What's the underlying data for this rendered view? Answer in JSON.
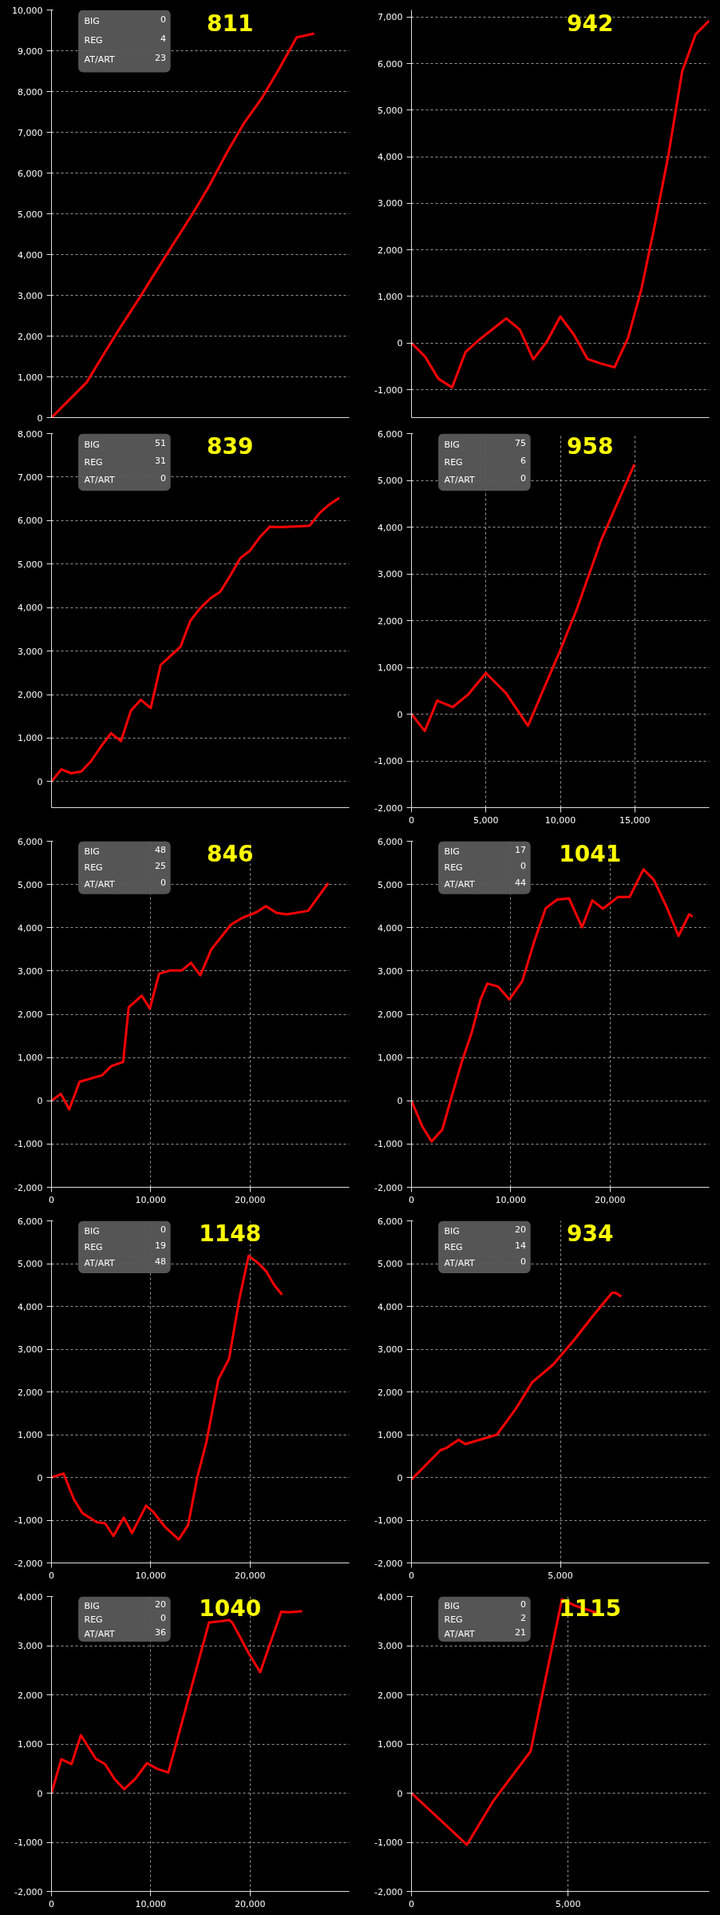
{
  "chart_data": [
    {
      "type": "line",
      "title": "811",
      "annotations": [
        "BIG",
        "0",
        "REG",
        "4",
        "AT/ART",
        "23"
      ],
      "categories": [
        null,
        null,
        null,
        null,
        null,
        null,
        null,
        null,
        null,
        null,
        null,
        null,
        null,
        null,
        null,
        null,
        null,
        null
      ],
      "series": [
        {
          "color": "#ff0000",
          "values": [
            0,
            430,
            860,
            1570,
            2260,
            2920,
            3610,
            4290,
            4960,
            5680,
            6490,
            7230,
            7830,
            8560,
            9330,
            9420,
            null,
            null
          ]
        }
      ],
      "ylim": [
        0,
        10000
      ],
      "yticks": [
        0,
        {
          "value": 1000,
          "label": "1,000"
        },
        {
          "value": 2000,
          "label": "2,000"
        },
        {
          "value": 3000,
          "label": "3,000"
        },
        {
          "value": 4000,
          "label": "4,000"
        },
        {
          "value": 5000,
          "label": "5,000"
        },
        {
          "value": 6000,
          "label": "6,000"
        },
        {
          "value": 7000,
          "label": "7,000"
        },
        {
          "value": 8000,
          "label": "8,000"
        },
        {
          "value": 9000,
          "label": "9,000"
        },
        {
          "value": 10000,
          "label": "10,000"
        }
      ],
      "tick_labels": "y",
      "grid": "y"
    },
    {
      "type": "line",
      "title": "942",
      "categories": [
        null,
        null,
        null,
        null,
        null,
        null,
        null,
        null,
        null,
        null,
        null,
        null,
        null,
        null,
        null,
        null,
        null,
        null,
        null,
        null,
        null,
        null,
        null
      ],
      "series": [
        {
          "color": "#ff0000",
          "values": [
            0,
            -290,
            -770,
            -950,
            -190,
            70,
            300,
            530,
            290,
            -350,
            30,
            570,
            180,
            -340,
            -440,
            -520,
            110,
            1170,
            2570,
            4060,
            5830,
            6630,
            6920
          ]
        }
      ],
      "ylim": [
        -1600,
        7150
      ],
      "yticks": [
        {
          "value": -1000,
          "label": "-1,000"
        },
        0,
        {
          "value": 1000,
          "label": "1,000"
        },
        {
          "value": 2000,
          "label": "2,000"
        },
        {
          "value": 3000,
          "label": "3,000"
        },
        {
          "value": 4000,
          "label": "4,000"
        },
        {
          "value": 5000,
          "label": "5,000"
        },
        {
          "value": 6000,
          "label": "6,000"
        },
        {
          "value": 7000,
          "label": "7,000"
        }
      ],
      "tick_labels": "y",
      "grid": "y"
    },
    {
      "type": "line",
      "title": "839",
      "annotations": [
        "BIG",
        "51",
        "REG",
        "31",
        "AT/ART",
        "0"
      ],
      "categories": [
        null,
        null,
        null,
        null,
        null,
        null,
        null,
        null,
        null,
        null,
        null,
        null,
        null,
        null,
        null,
        null,
        null,
        null,
        null,
        null,
        null,
        null,
        null,
        null,
        null,
        null,
        null,
        null,
        null,
        null,
        null
      ],
      "series": [
        {
          "color": "#ff0000",
          "values": [
            0,
            280,
            190,
            230,
            470,
            810,
            1110,
            930,
            1630,
            1880,
            1690,
            2680,
            2890,
            3100,
            3700,
            3990,
            4210,
            4360,
            4730,
            5130,
            5310,
            5620,
            5860,
            5850,
            5860,
            5870,
            5880,
            6170,
            6370,
            6520,
            null
          ]
        }
      ],
      "ylim": [
        -600,
        8000
      ],
      "yticks": [
        0,
        {
          "value": 1000,
          "label": "1,000"
        },
        {
          "value": 2000,
          "label": "2,000"
        },
        {
          "value": 3000,
          "label": "3,000"
        },
        {
          "value": 4000,
          "label": "4,000"
        },
        {
          "value": 5000,
          "label": "5,000"
        },
        {
          "value": 6000,
          "label": "6,000"
        },
        {
          "value": 7000,
          "label": "7,000"
        },
        {
          "value": 8000,
          "label": "8,000"
        }
      ],
      "tick_labels": "y",
      "grid": "y"
    },
    {
      "type": "line",
      "title": "958",
      "annotations": [
        "BIG",
        "75",
        "REG",
        "6",
        "AT/ART",
        "0"
      ],
      "series": [
        {
          "color": "#ff0000",
          "x": [
            0,
            890,
            1730,
            2770,
            3810,
            5000,
            6340,
            7830,
            8720,
            9910,
            11100,
            12740,
            14970
          ],
          "values": [
            0,
            -360,
            290,
            150,
            420,
            880,
            450,
            -250,
            420,
            1300,
            2240,
            3720,
            5340
          ]
        }
      ],
      "xlim": [
        0,
        20000
      ],
      "xticks": [
        0,
        {
          "value": 5000,
          "label": "5,000"
        },
        {
          "value": 10000,
          "label": "10,000"
        },
        {
          "value": 15000,
          "label": "15,000"
        }
      ],
      "ylim": [
        -2000,
        6000
      ],
      "yticks": [
        {
          "value": -2000,
          "label": "-2,000"
        },
        {
          "value": -1000,
          "label": "-1,000"
        },
        0,
        {
          "value": 1000,
          "label": "1,000"
        },
        {
          "value": 2000,
          "label": "2,000"
        },
        {
          "value": 3000,
          "label": "3,000"
        },
        {
          "value": 4000,
          "label": "4,000"
        },
        {
          "value": 5000,
          "label": "5,000"
        },
        {
          "value": 6000,
          "label": "6,000"
        }
      ],
      "grid": true
    },
    {
      "type": "line",
      "title": "846",
      "annotations": [
        "BIG",
        "48",
        "REG",
        "25",
        "AT/ART",
        "0"
      ],
      "series": [
        {
          "color": "#ff0000",
          "x": [
            0,
            940,
            1790,
            2830,
            5090,
            6040,
            7220,
            7780,
            9100,
            9910,
            10850,
            11930,
            13110,
            14060,
            15000,
            16080,
            18070,
            19250,
            20660,
            21600,
            22690,
            23730,
            25850,
            27880
          ],
          "values": [
            0,
            160,
            -200,
            440,
            590,
            800,
            900,
            2160,
            2430,
            2130,
            2940,
            3010,
            3010,
            3190,
            2900,
            3490,
            4070,
            4230,
            4360,
            4500,
            4340,
            4310,
            4390,
            5030
          ]
        }
      ],
      "xlim": [
        0,
        30000
      ],
      "xticks": [
        0,
        {
          "value": 10000,
          "label": "10,000"
        },
        {
          "value": 20000,
          "label": "20,000"
        }
      ],
      "ylim": [
        -2000,
        6000
      ],
      "yticks": [
        {
          "value": -2000,
          "label": "-2,000"
        },
        {
          "value": -1000,
          "label": "-1,000"
        },
        0,
        {
          "value": 1000,
          "label": "1,000"
        },
        {
          "value": 2000,
          "label": "2,000"
        },
        {
          "value": 3000,
          "label": "3,000"
        },
        {
          "value": 4000,
          "label": "4,000"
        },
        {
          "value": 5000,
          "label": "5,000"
        },
        {
          "value": 6000,
          "label": "6,000"
        }
      ],
      "grid": true
    },
    {
      "type": "line",
      "title": "1041",
      "annotations": [
        "BIG",
        "17",
        "REG",
        "0",
        "AT/ART",
        "44"
      ],
      "series": [
        {
          "color": "#ff0000",
          "x": [
            0,
            1080,
            2020,
            3100,
            4130,
            5070,
            6100,
            6950,
            7650,
            8730,
            9860,
            11170,
            12350,
            13520,
            14690,
            15870,
            17180,
            18220,
            19300,
            20800,
            21970,
            23380,
            24410,
            25730,
            26900,
            27980,
            28310
          ],
          "values": [
            0,
            -590,
            -940,
            -670,
            160,
            900,
            1600,
            2340,
            2710,
            2640,
            2340,
            2770,
            3670,
            4450,
            4650,
            4680,
            4010,
            4630,
            4440,
            4710,
            4710,
            5350,
            5110,
            4470,
            3810,
            4310,
            4260
          ]
        }
      ],
      "xlim": [
        0,
        30000
      ],
      "xticks": [
        0,
        {
          "value": 10000,
          "label": "10,000"
        },
        {
          "value": 20000,
          "label": "20,000"
        }
      ],
      "ylim": [
        -2000,
        6000
      ],
      "yticks": [
        {
          "value": -2000,
          "label": "-2,000"
        },
        {
          "value": -1000,
          "label": "-1,000"
        },
        0,
        {
          "value": 1000,
          "label": "1,000"
        },
        {
          "value": 2000,
          "label": "2,000"
        },
        {
          "value": 3000,
          "label": "3,000"
        },
        {
          "value": 4000,
          "label": "4,000"
        },
        {
          "value": 5000,
          "label": "5,000"
        },
        {
          "value": 6000,
          "label": "6,000"
        }
      ],
      "grid": true
    },
    {
      "type": "line",
      "title": "1148",
      "annotations": [
        "BIG",
        "0",
        "REG",
        "19",
        "AT/ART",
        "48"
      ],
      "series": [
        {
          "color": "#ff0000",
          "x": [
            0,
            1220,
            2250,
            3100,
            4600,
            5400,
            6240,
            7280,
            8120,
            9530,
            10230,
            11410,
            12820,
            13760,
            14690,
            15630,
            16810,
            17890,
            18920,
            19860,
            20800,
            21640,
            22440,
            23240
          ],
          "values": [
            0,
            90,
            -510,
            -830,
            -1050,
            -1070,
            -1370,
            -940,
            -1300,
            -660,
            -800,
            -1150,
            -1450,
            -1120,
            0,
            850,
            2290,
            2770,
            4160,
            5180,
            5020,
            4820,
            4500,
            4270
          ]
        }
      ],
      "xlim": [
        0,
        30000
      ],
      "xticks": [
        0,
        {
          "value": 10000,
          "label": "10,000"
        },
        {
          "value": 20000,
          "label": "20,000"
        }
      ],
      "ylim": [
        -2000,
        6000
      ],
      "yticks": [
        {
          "value": -2000,
          "label": "-2,000"
        },
        {
          "value": -1000,
          "label": "-1,000"
        },
        0,
        {
          "value": 1000,
          "label": "1,000"
        },
        {
          "value": 2000,
          "label": "2,000"
        },
        {
          "value": 3000,
          "label": "3,000"
        },
        {
          "value": 4000,
          "label": "4,000"
        },
        {
          "value": 5000,
          "label": "5,000"
        },
        {
          "value": 6000,
          "label": "6,000"
        }
      ],
      "grid": true
    },
    {
      "type": "line",
      "title": "934",
      "annotations": [
        "BIG",
        "20",
        "REG",
        "14",
        "AT/ART",
        "0"
      ],
      "series": [
        {
          "color": "#ff0000",
          "x": [
            0,
            980,
            1180,
            1580,
            1810,
            2870,
            3500,
            4050,
            4760,
            5470,
            6100,
            6740,
            6850,
            7050
          ],
          "values": [
            -50,
            640,
            690,
            880,
            780,
            1000,
            1600,
            2220,
            2640,
            3220,
            3780,
            4320,
            4320,
            4230
          ]
        }
      ],
      "xlim": [
        0,
        10000
      ],
      "xticks": [
        0,
        {
          "value": 5000,
          "label": "5,000"
        }
      ],
      "ylim": [
        -2000,
        6000
      ],
      "yticks": [
        {
          "value": -2000,
          "label": "-2,000"
        },
        {
          "value": -1000,
          "label": "-1,000"
        },
        0,
        {
          "value": 1000,
          "label": "1,000"
        },
        {
          "value": 2000,
          "label": "2,000"
        },
        {
          "value": 3000,
          "label": "3,000"
        },
        {
          "value": 4000,
          "label": "4,000"
        },
        {
          "value": 5000,
          "label": "5,000"
        },
        {
          "value": 6000,
          "label": "6,000"
        }
      ],
      "grid": true
    },
    {
      "type": "line",
      "title": "1040",
      "annotations": [
        "BIG",
        "20",
        "REG",
        "0",
        "AT/ART",
        "36"
      ],
      "series": [
        {
          "color": "#ff0000",
          "x": [
            0,
            990,
            2020,
            2960,
            4460,
            5400,
            6340,
            7320,
            8450,
            9620,
            10700,
            11780,
            15870,
            16810,
            17890,
            18220,
            19860,
            21030,
            23150,
            23850,
            25260
          ],
          "values": [
            0,
            690,
            590,
            1180,
            700,
            590,
            290,
            80,
            290,
            610,
            490,
            420,
            3470,
            3490,
            3520,
            3470,
            2850,
            2460,
            3690,
            3680,
            3700
          ]
        }
      ],
      "xlim": [
        0,
        30000
      ],
      "xticks": [
        0,
        {
          "value": 10000,
          "label": "10,000"
        },
        {
          "value": 20000,
          "label": "20,000"
        }
      ],
      "ylim": [
        -2000,
        4000
      ],
      "yticks": [
        {
          "value": -2000,
          "label": "-2,000"
        },
        {
          "value": -1000,
          "label": "-1,000"
        },
        0,
        {
          "value": 1000,
          "label": "1,000"
        },
        {
          "value": 2000,
          "label": "2,000"
        },
        {
          "value": 3000,
          "label": "3,000"
        },
        {
          "value": 4000,
          "label": "4,000"
        }
      ],
      "grid": true
    },
    {
      "type": "line",
      "title": "1115",
      "annotations": [
        "BIG",
        "0",
        "REG",
        "2",
        "AT/ART",
        "21"
      ],
      "series": [
        {
          "color": "#ff0000",
          "x": [
            0,
            1770,
            2600,
            3800,
            4800,
            5230,
            5900
          ],
          "values": [
            0,
            -1050,
            -170,
            850,
            3940,
            3810,
            3670
          ]
        }
      ],
      "xlim": [
        0,
        9500
      ],
      "xticks": [
        0,
        {
          "value": 5000,
          "label": "5,000"
        }
      ],
      "ylim": [
        -2000,
        4000
      ],
      "yticks": [
        {
          "value": -2000,
          "label": "-2,000"
        },
        {
          "value": -1000,
          "label": "-1,000"
        },
        0,
        {
          "value": 1000,
          "label": "1,000"
        },
        {
          "value": 2000,
          "label": "2,000"
        },
        {
          "value": 3000,
          "label": "3,000"
        },
        {
          "value": 4000,
          "label": "4,000"
        }
      ],
      "grid": true
    }
  ]
}
